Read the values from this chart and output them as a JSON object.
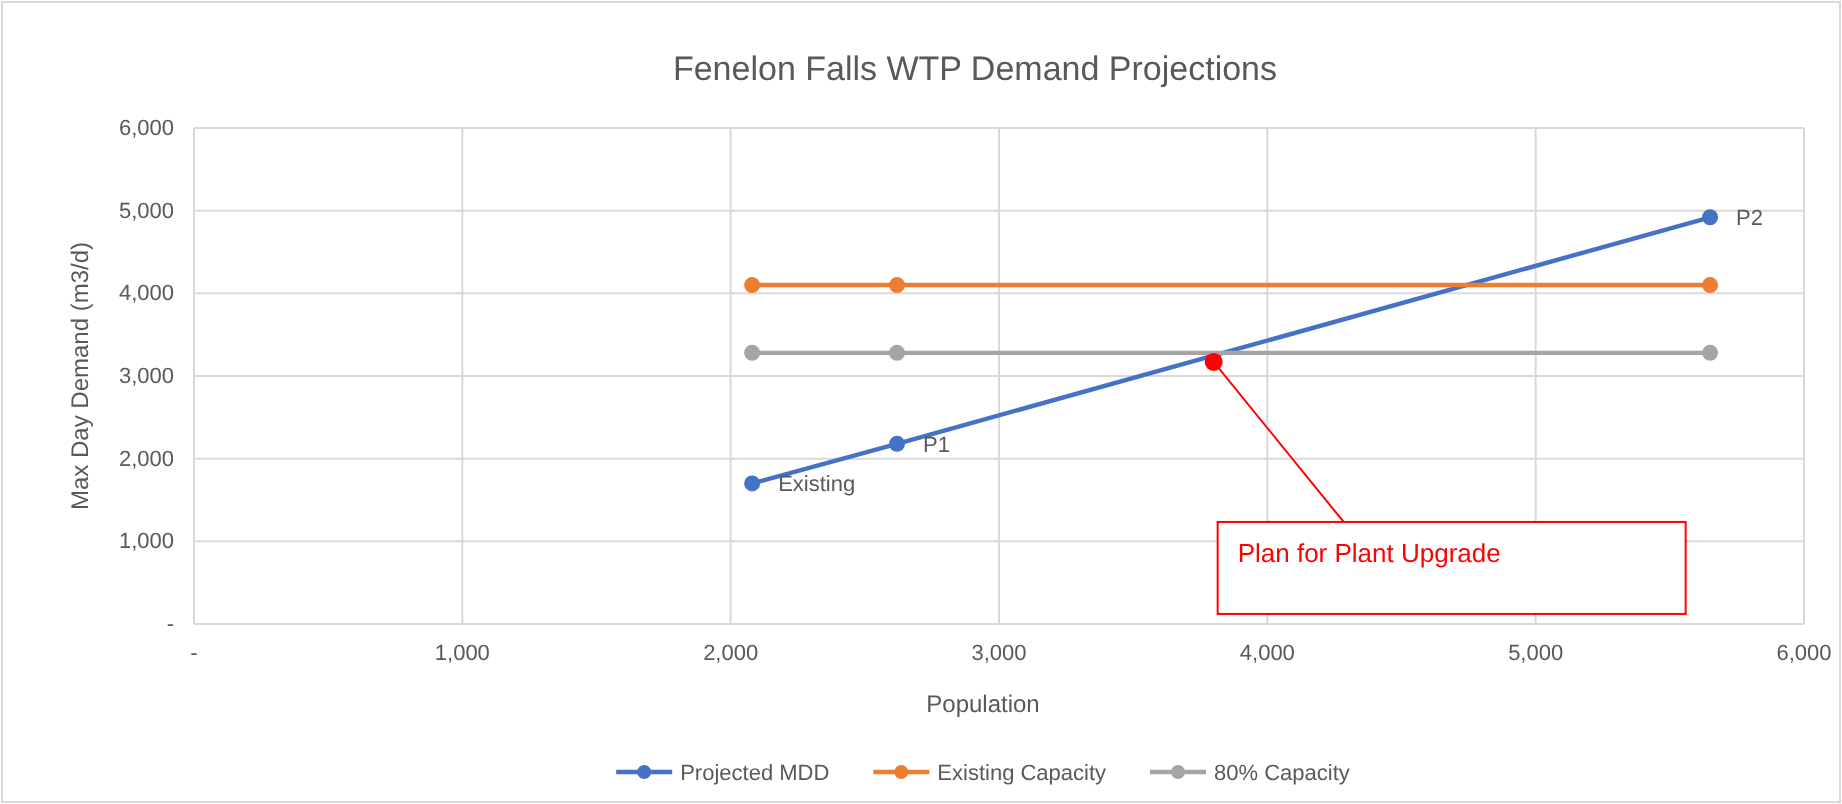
{
  "chart_data": {
    "type": "line",
    "title": "Fenelon Falls WTP Demand Projections",
    "xlabel": "Population",
    "ylabel": "Max Day Demand (m3/d)",
    "x": [
      2080,
      2620,
      5650
    ],
    "series": [
      {
        "name": "Projected MDD",
        "color": "#4472c4",
        "values": [
          1700,
          2180,
          4920
        ],
        "value_labels": [
          "Existing",
          "P1",
          "P2"
        ]
      },
      {
        "name": "Existing Capacity",
        "color": "#ed7d31",
        "values": [
          4100,
          4100,
          4100
        ]
      },
      {
        "name": "80% Capacity",
        "color": "#a5a5a5",
        "values": [
          3280,
          3280,
          3280
        ]
      },
      {
        "type": "scatter",
        "color": "#ff0000",
        "x": [
          3800
        ],
        "values": [
          3170
        ]
      }
    ],
    "annotations": [
      {
        "text": "Plan for Plant Upgrade",
        "x": 3800,
        "y": 3170
      }
    ],
    "xlim": [
      0,
      6000
    ],
    "xticks": [
      {
        "value": 0,
        "label": "-"
      },
      {
        "value": 1000,
        "label": "1,000"
      },
      {
        "value": 2000,
        "label": "2,000"
      },
      {
        "value": 3000,
        "label": "3,000"
      },
      {
        "value": 4000,
        "label": "4,000"
      },
      {
        "value": 5000,
        "label": "5,000"
      },
      {
        "value": 6000,
        "label": "6,000"
      }
    ],
    "ylim": [
      0,
      6000
    ],
    "yticks": [
      {
        "value": 0,
        "label": "-"
      },
      {
        "value": 1000,
        "label": "1,000"
      },
      {
        "value": 2000,
        "label": "2,000"
      },
      {
        "value": 3000,
        "label": "3,000"
      },
      {
        "value": 4000,
        "label": "4,000"
      },
      {
        "value": 5000,
        "label": "5,000"
      },
      {
        "value": 6000,
        "label": "6,000"
      }
    ],
    "grid": true,
    "legend": "bottom",
    "marker": "circle",
    "line_style": "solid"
  }
}
